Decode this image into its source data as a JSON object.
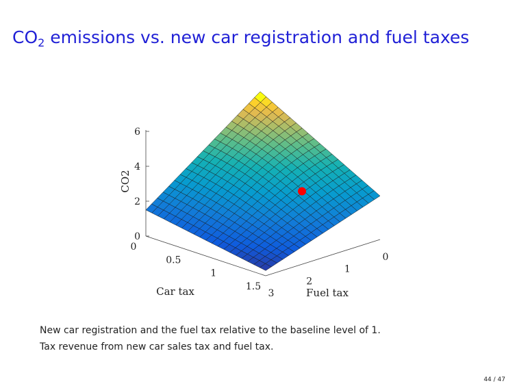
{
  "slide": {
    "title_main": "CO",
    "title_sub": "2",
    "title_rest": " emissions vs. new car registration and fuel taxes",
    "page": "44 / 47"
  },
  "caption": {
    "line1": "New car registration and the fuel tax relative to the baseline level of 1.",
    "line2": "Tax revenue from new car sales tax and fuel tax."
  },
  "colors": {
    "title": "#1f1fd6",
    "marker": "#ff0000"
  },
  "chart_data": {
    "type": "surface",
    "colormap": "parula",
    "grid": false,
    "x": {
      "label": "Car tax",
      "range": [
        0,
        1.5
      ],
      "ticks": [
        "0",
        "0.5",
        "1",
        "1.5"
      ]
    },
    "y": {
      "label": "Fuel tax",
      "range": [
        0,
        3
      ],
      "ticks": [
        "0",
        "1",
        "2",
        "3"
      ]
    },
    "z": {
      "label": "CO2",
      "range": [
        0,
        6
      ],
      "ticks": [
        "0",
        "2",
        "4",
        "6"
      ]
    },
    "corners": [
      {
        "car_tax": 0,
        "fuel_tax": 0,
        "co2": 6.2
      },
      {
        "car_tax": 1.5,
        "fuel_tax": 0,
        "co2": 2.5
      },
      {
        "car_tax": 0,
        "fuel_tax": 3,
        "co2": 1.5
      },
      {
        "car_tax": 1.5,
        "fuel_tax": 3,
        "co2": 0.3
      }
    ],
    "highlight": {
      "car_tax": 1,
      "fuel_tax": 1,
      "co2": 2.7
    }
  }
}
